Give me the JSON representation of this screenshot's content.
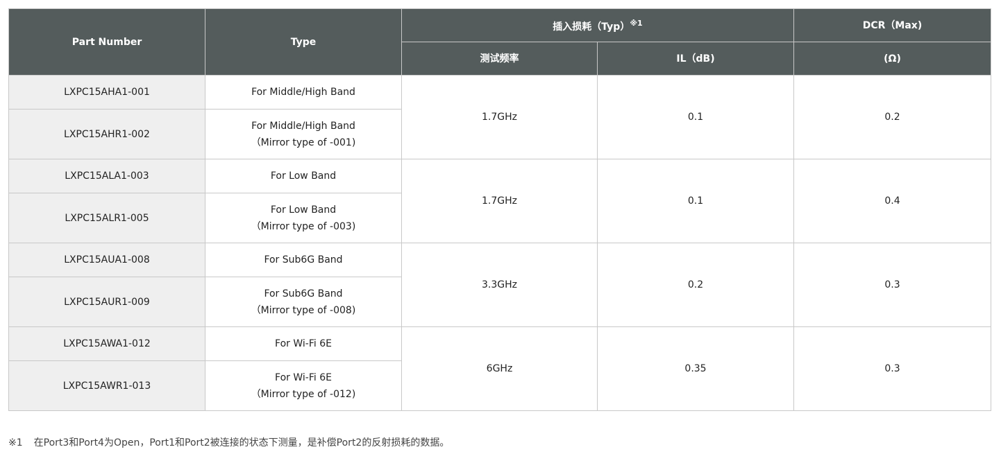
{
  "headers": {
    "part_number": "Part Number",
    "type": "Type",
    "insertion_loss": "插入损耗（Typ）",
    "insertion_loss_note": "※1",
    "dcr": "DCR（Max)",
    "test_freq": "测试频率",
    "il": "IL（dB)",
    "ohm": "(Ω)"
  },
  "groups": [
    {
      "freq": "1.7GHz",
      "il": "0.1",
      "dcr": "0.2",
      "rows": [
        {
          "part": "LXPC15AHA1-001",
          "type": "For Middle/High Band",
          "sub": ""
        },
        {
          "part": "LXPC15AHR1-002",
          "type": "For Middle/High Band",
          "sub": "（Mirror type of -001)"
        }
      ]
    },
    {
      "freq": "1.7GHz",
      "il": "0.1",
      "dcr": "0.4",
      "rows": [
        {
          "part": "LXPC15ALA1-003",
          "type": "For Low Band",
          "sub": ""
        },
        {
          "part": "LXPC15ALR1-005",
          "type": "For Low Band",
          "sub": "（Mirror type of -003)"
        }
      ]
    },
    {
      "freq": "3.3GHz",
      "il": "0.2",
      "dcr": "0.3",
      "rows": [
        {
          "part": "LXPC15AUA1-008",
          "type": "For Sub6G Band",
          "sub": ""
        },
        {
          "part": "LXPC15AUR1-009",
          "type": "For Sub6G Band",
          "sub": "（Mirror type of -008)"
        }
      ]
    },
    {
      "freq": "6GHz",
      "il": "0.35",
      "dcr": "0.3",
      "rows": [
        {
          "part": "LXPC15AWA1-012",
          "type": "For Wi-Fi 6E",
          "sub": ""
        },
        {
          "part": "LXPC15AWR1-013",
          "type": "For Wi-Fi 6E",
          "sub": "（Mirror type of -012)"
        }
      ]
    }
  ],
  "footnote": {
    "mark": "※1",
    "text": "在Port3和Port4为Open，Port1和Port2被连接的状态下测量，是补偿Port2的反射损耗的数据。"
  }
}
